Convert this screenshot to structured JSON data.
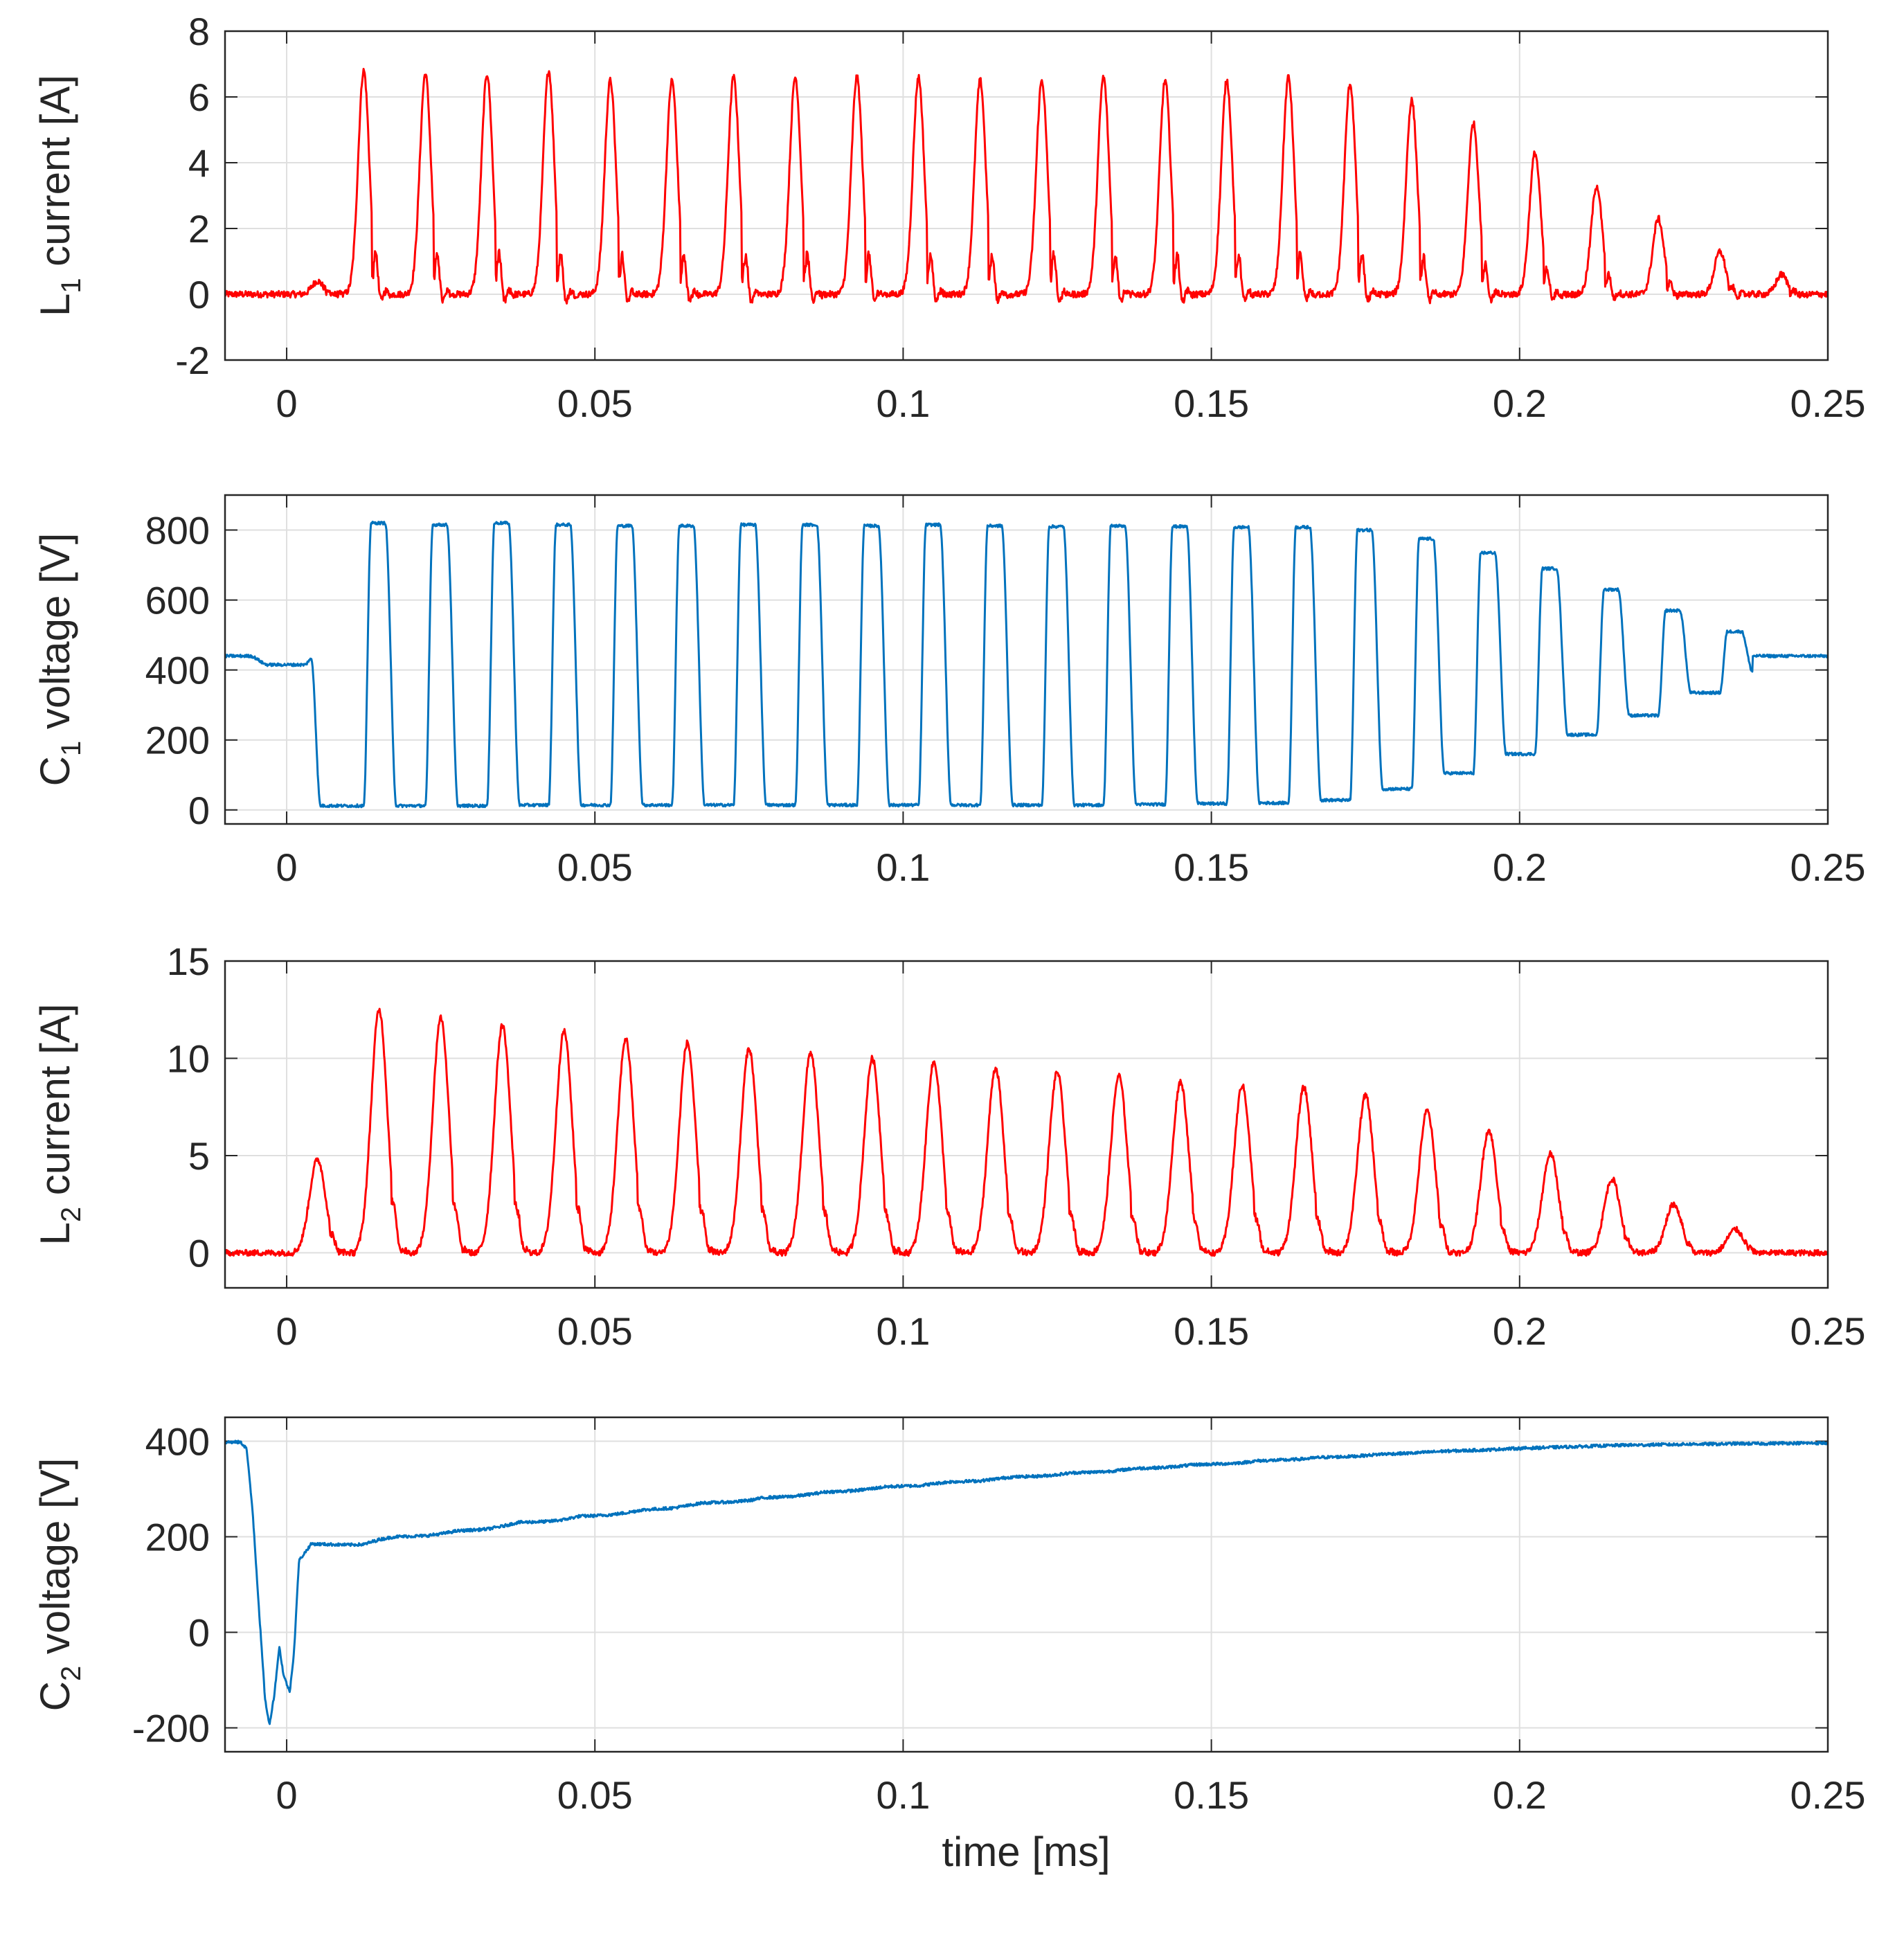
{
  "figure": {
    "xlabel": "time [ms]"
  },
  "colors": {
    "red": "#ff0000",
    "blue": "#0072bd",
    "grid": "#dfdfdf",
    "axis": "#262626"
  },
  "chart_data": [
    {
      "type": "line",
      "ylabel": {
        "prefix": "L",
        "sub": "1",
        "rest": " current [A]"
      },
      "xlim": [
        -0.01,
        0.25
      ],
      "ylim": [
        -2,
        8
      ],
      "xticks": [
        0,
        0.05,
        0.1,
        0.15,
        0.2,
        0.25
      ],
      "xtick_labels": [
        "0",
        "0.05",
        "0.1",
        "0.15",
        "0.2",
        "0.25"
      ],
      "yticks": [
        -2,
        0,
        2,
        4,
        6,
        8
      ],
      "ytick_labels": [
        "-2",
        "0",
        "2",
        "4",
        "6",
        "8"
      ],
      "series": [
        {
          "name": "L1 current",
          "color": "#ff0000",
          "kind": "spikes",
          "baseline": 0,
          "noise": 0.1,
          "pulse_times": [
            0.005,
            0.0125,
            0.0225,
            0.0325,
            0.0425,
            0.0525,
            0.0625,
            0.0725,
            0.0825,
            0.0925,
            0.1025,
            0.1125,
            0.1225,
            0.1325,
            0.1425,
            0.1525,
            0.1625,
            0.1725,
            0.1825,
            0.1925,
            0.2025,
            0.2125,
            0.2225,
            0.2325,
            0.2425
          ],
          "pulse_peaks": [
            0.4,
            6.8,
            6.7,
            6.7,
            6.8,
            6.5,
            6.5,
            6.6,
            6.6,
            6.6,
            6.6,
            6.5,
            6.5,
            6.6,
            6.5,
            6.5,
            6.6,
            6.4,
            5.9,
            5.2,
            4.3,
            3.3,
            2.3,
            1.3,
            0.6
          ],
          "undershoot": 1.7,
          "pulse_width": 0.0009
        }
      ]
    },
    {
      "type": "line",
      "ylabel": {
        "prefix": "C",
        "sub": "1",
        "rest": " voltage [V]"
      },
      "xlim": [
        -0.01,
        0.25
      ],
      "ylim": [
        -40,
        900
      ],
      "xticks": [
        0,
        0.05,
        0.1,
        0.15,
        0.2,
        0.25
      ],
      "xtick_labels": [
        "0",
        "0.05",
        "0.1",
        "0.15",
        "0.2",
        "0.25"
      ],
      "yticks": [
        0,
        200,
        400,
        600,
        800
      ],
      "ytick_labels": [
        "0",
        "200",
        "400",
        "600",
        "800"
      ],
      "series": [
        {
          "name": "C1 voltage",
          "color": "#0072bd",
          "kind": "square",
          "noise": 4,
          "pre_level": 440,
          "pre_dip": 415,
          "drop_time": 0.0055,
          "pulse_starts": [
            0.0125,
            0.0225,
            0.0325,
            0.0425,
            0.0525,
            0.0625,
            0.0725,
            0.0825,
            0.0925,
            0.1025,
            0.1125,
            0.1225,
            0.1325,
            0.1425,
            0.1525,
            0.1625,
            0.1725,
            0.1825,
            0.1925,
            0.2025,
            0.2125,
            0.2225,
            0.2325
          ],
          "pulse_highs": [
            820,
            815,
            820,
            815,
            812,
            812,
            815,
            815,
            812,
            815,
            812,
            810,
            812,
            810,
            808,
            808,
            800,
            775,
            735,
            690,
            630,
            570,
            510
          ],
          "low_levels": [
            12,
            12,
            12,
            14,
            14,
            14,
            14,
            14,
            14,
            14,
            14,
            14,
            14,
            16,
            18,
            20,
            28,
            60,
            105,
            160,
            215,
            270,
            335,
            395
          ],
          "final_level": 440,
          "pulse_width": 0.0035
        }
      ]
    },
    {
      "type": "line",
      "ylabel": {
        "prefix": "L",
        "sub": "2",
        "rest": " current [A]"
      },
      "xlim": [
        -0.01,
        0.25
      ],
      "ylim": [
        -1.8,
        15
      ],
      "xticks": [
        0,
        0.05,
        0.1,
        0.15,
        0.2,
        0.25
      ],
      "xtick_labels": [
        "0",
        "0.05",
        "0.1",
        "0.15",
        "0.2",
        "0.25"
      ],
      "yticks": [
        0,
        5,
        10,
        15
      ],
      "ytick_labels": [
        "0",
        "5",
        "10",
        "15"
      ],
      "series": [
        {
          "name": "L2 current",
          "color": "#ff0000",
          "kind": "spikes",
          "baseline": 0,
          "noise": 0.15,
          "pulse_times": [
            0.005,
            0.015,
            0.025,
            0.035,
            0.045,
            0.055,
            0.065,
            0.075,
            0.085,
            0.095,
            0.105,
            0.115,
            0.125,
            0.135,
            0.145,
            0.155,
            0.165,
            0.175,
            0.185,
            0.195,
            0.205,
            0.215,
            0.225,
            0.235
          ],
          "pulse_peaks": [
            4.8,
            12.5,
            12.1,
            11.7,
            11.4,
            11.0,
            10.8,
            10.5,
            10.3,
            10.0,
            9.8,
            9.5,
            9.3,
            9.1,
            8.8,
            8.6,
            8.5,
            8.1,
            7.3,
            6.3,
            5.1,
            3.8,
            2.5,
            1.2
          ],
          "undershoot": 1.1,
          "pulse_width": 0.0013
        }
      ]
    },
    {
      "type": "line",
      "ylabel": {
        "prefix": "C",
        "sub": "2",
        "rest": " voltage [V]"
      },
      "xlim": [
        -0.01,
        0.25
      ],
      "ylim": [
        -250,
        450
      ],
      "xticks": [
        0,
        0.05,
        0.1,
        0.15,
        0.2,
        0.25
      ],
      "xtick_labels": [
        "0",
        "0.05",
        "0.1",
        "0.15",
        "0.2",
        "0.25"
      ],
      "yticks": [
        -200,
        0,
        200,
        400
      ],
      "ytick_labels": [
        "-200",
        "0",
        "200",
        "400"
      ],
      "series": [
        {
          "name": "C2 voltage",
          "color": "#0072bd",
          "kind": "staircase",
          "noise": 3,
          "x": [
            -0.01,
            -0.0075,
            -0.0065,
            -0.0055,
            -0.0045,
            -0.0035,
            -0.0028,
            -0.002,
            -0.0012,
            -0.0005,
            0.0005,
            0.0012,
            0.002,
            0.004,
            0.01,
            0.0125,
            0.015,
            0.0175,
            0.02,
            0.0225,
            0.025,
            0.0275,
            0.03,
            0.0325,
            0.035,
            0.0375,
            0.04,
            0.0425,
            0.045,
            0.0475,
            0.05,
            0.0525,
            0.055,
            0.0575,
            0.06,
            0.0625,
            0.065,
            0.0675,
            0.07,
            0.0725,
            0.075,
            0.0775,
            0.08,
            0.0825,
            0.085,
            0.0875,
            0.09,
            0.0925,
            0.095,
            0.0975,
            0.1,
            0.1025,
            0.105,
            0.1075,
            0.11,
            0.1125,
            0.115,
            0.1175,
            0.12,
            0.1225,
            0.125,
            0.1275,
            0.13,
            0.1325,
            0.135,
            0.1375,
            0.14,
            0.1425,
            0.145,
            0.1475,
            0.15,
            0.1525,
            0.155,
            0.1575,
            0.16,
            0.1625,
            0.165,
            0.1675,
            0.17,
            0.1725,
            0.175,
            0.1775,
            0.18,
            0.1825,
            0.185,
            0.1875,
            0.19,
            0.1925,
            0.195,
            0.1975,
            0.2,
            0.2025,
            0.205,
            0.2075,
            0.21,
            0.2125,
            0.215,
            0.2175,
            0.22,
            0.2225,
            0.225,
            0.2275,
            0.23,
            0.2325,
            0.235,
            0.2375,
            0.24,
            0.2425,
            0.245,
            0.2475,
            0.25
          ],
          "y": [
            398,
            398,
            385,
            250,
            50,
            -140,
            -195,
            -130,
            -30,
            -90,
            -125,
            -40,
            150,
            185,
            183,
            184,
            194,
            200,
            201,
            202,
            206,
            212,
            214,
            216,
            222,
            230,
            231,
            232,
            236,
            243,
            244,
            246,
            250,
            256,
            258,
            260,
            265,
            271,
            272,
            273,
            276,
            282,
            283,
            285,
            289,
            294,
            295,
            297,
            301,
            305,
            306,
            307,
            311,
            315,
            316,
            317,
            321,
            325,
            326,
            327,
            330,
            334,
            335,
            336,
            339,
            343,
            344,
            345,
            348,
            351,
            352,
            353,
            355,
            359,
            360,
            361,
            363,
            366,
            367,
            368,
            370,
            373,
            374,
            375,
            377,
            379,
            380,
            381,
            382,
            384,
            385,
            386,
            387,
            388,
            389,
            390,
            391,
            392,
            392,
            393,
            393,
            394,
            394,
            394,
            395,
            395,
            395,
            396,
            396,
            396,
            396
          ]
        }
      ]
    }
  ]
}
